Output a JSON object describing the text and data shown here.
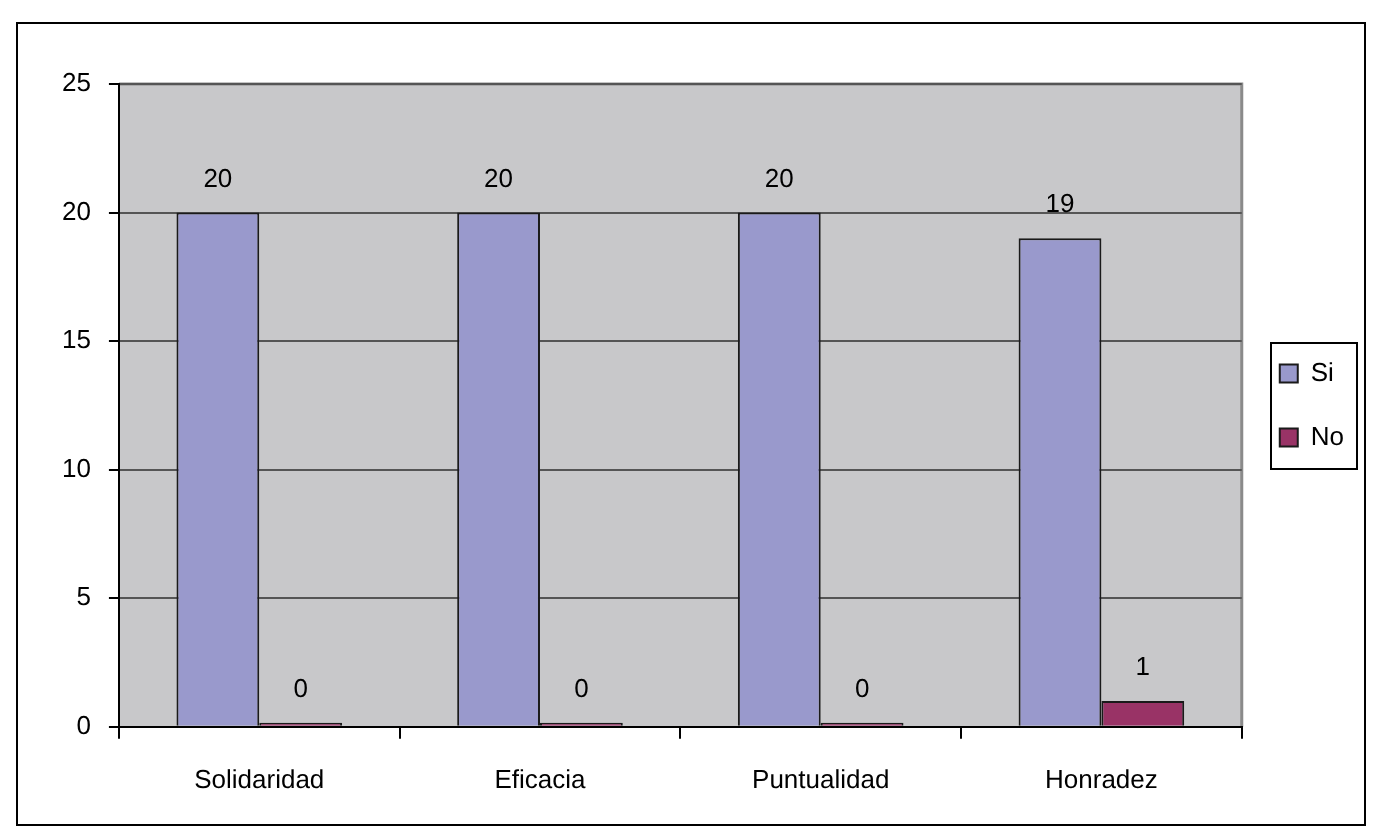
{
  "chart_data": {
    "type": "bar",
    "categories": [
      "Solidaridad",
      "Eficacia",
      "Puntualidad",
      "Honradez"
    ],
    "series": [
      {
        "name": "Si",
        "color": "#9999cc",
        "values": [
          20,
          20,
          20,
          19
        ]
      },
      {
        "name": "No",
        "color": "#993366",
        "values": [
          0,
          0,
          0,
          1
        ]
      }
    ],
    "ylim": [
      0,
      25
    ],
    "yticks": [
      0,
      5,
      10,
      15,
      20,
      25
    ],
    "grid": "y",
    "legend": "right",
    "data_labels": true
  }
}
